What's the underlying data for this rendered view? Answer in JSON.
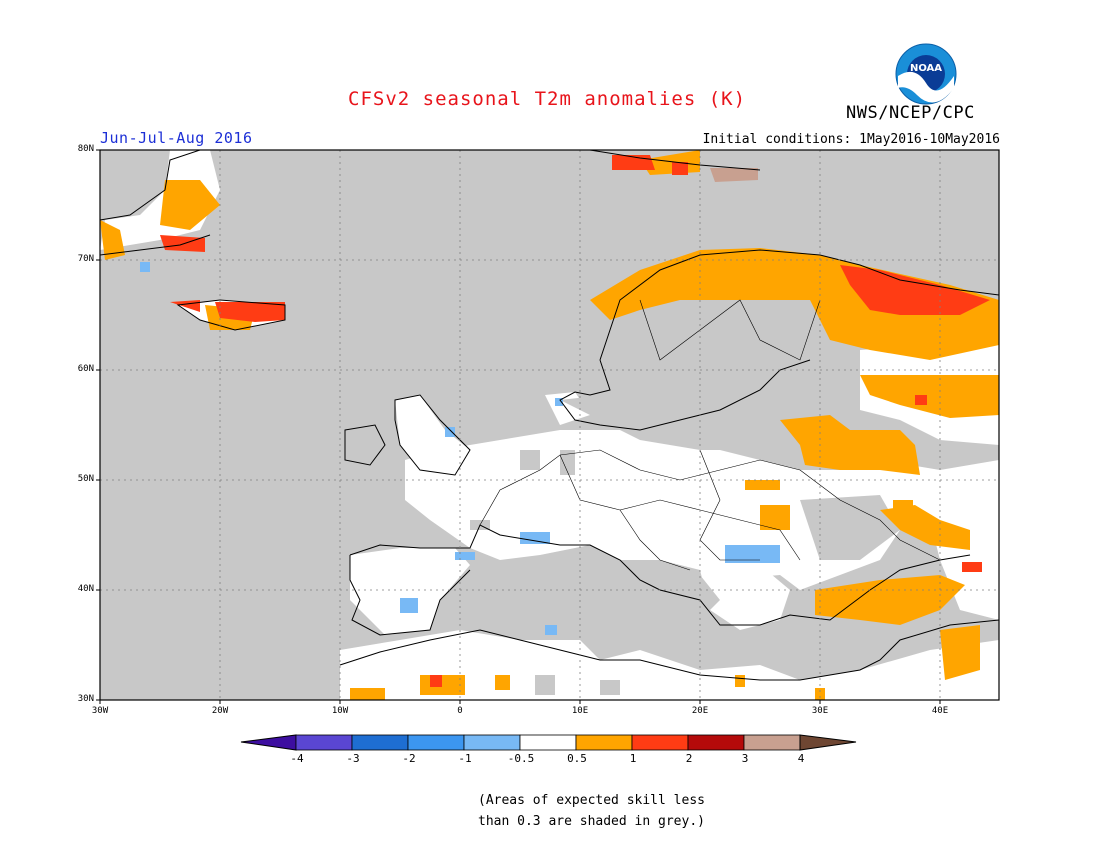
{
  "header": {
    "title": "CFSv2 seasonal T2m anomalies (K)",
    "agency": "NWS/NCEP/CPC",
    "period": "Jun-Jul-Aug 2016",
    "initial_conditions": "Initial conditions: 1May2016-10May2016",
    "logo_text": "NOAA"
  },
  "map": {
    "region": "Europe",
    "lon_range": [
      -30,
      45
    ],
    "lat_range": [
      30,
      80
    ],
    "lat_labels": [
      "80N",
      "70N",
      "60N",
      "50N",
      "40N",
      "30N"
    ],
    "lon_labels": [
      "30W",
      "20W",
      "10W",
      "0",
      "10E",
      "20E",
      "30E",
      "40E"
    ],
    "grid": true,
    "colors": {
      "ocean": "#c8c8c8",
      "no_skill_land": "#c8c8c8",
      "neutral": "#ffffff",
      "warm_0_5_1": "#ffa500",
      "warm_1_2": "#ff3c14",
      "cool_-1_-0_5": "#7db4f0"
    }
  },
  "colorbar": {
    "ticks": [
      "-4",
      "-3",
      "-2",
      "-1",
      "-0.5",
      "0.5",
      "1",
      "2",
      "3",
      "4"
    ],
    "colors": [
      "#3d0ea0",
      "#5a46d2",
      "#1e6ed2",
      "#3c96f0",
      "#78b9f5",
      "#ffffff",
      "#ffa500",
      "#ff3c14",
      "#b40a0a",
      "#c8a090",
      "#6e4632"
    ]
  },
  "footnote": {
    "line1": "(Areas of expected skill less",
    "line2": "than 0.3 are shaded in grey.)"
  }
}
